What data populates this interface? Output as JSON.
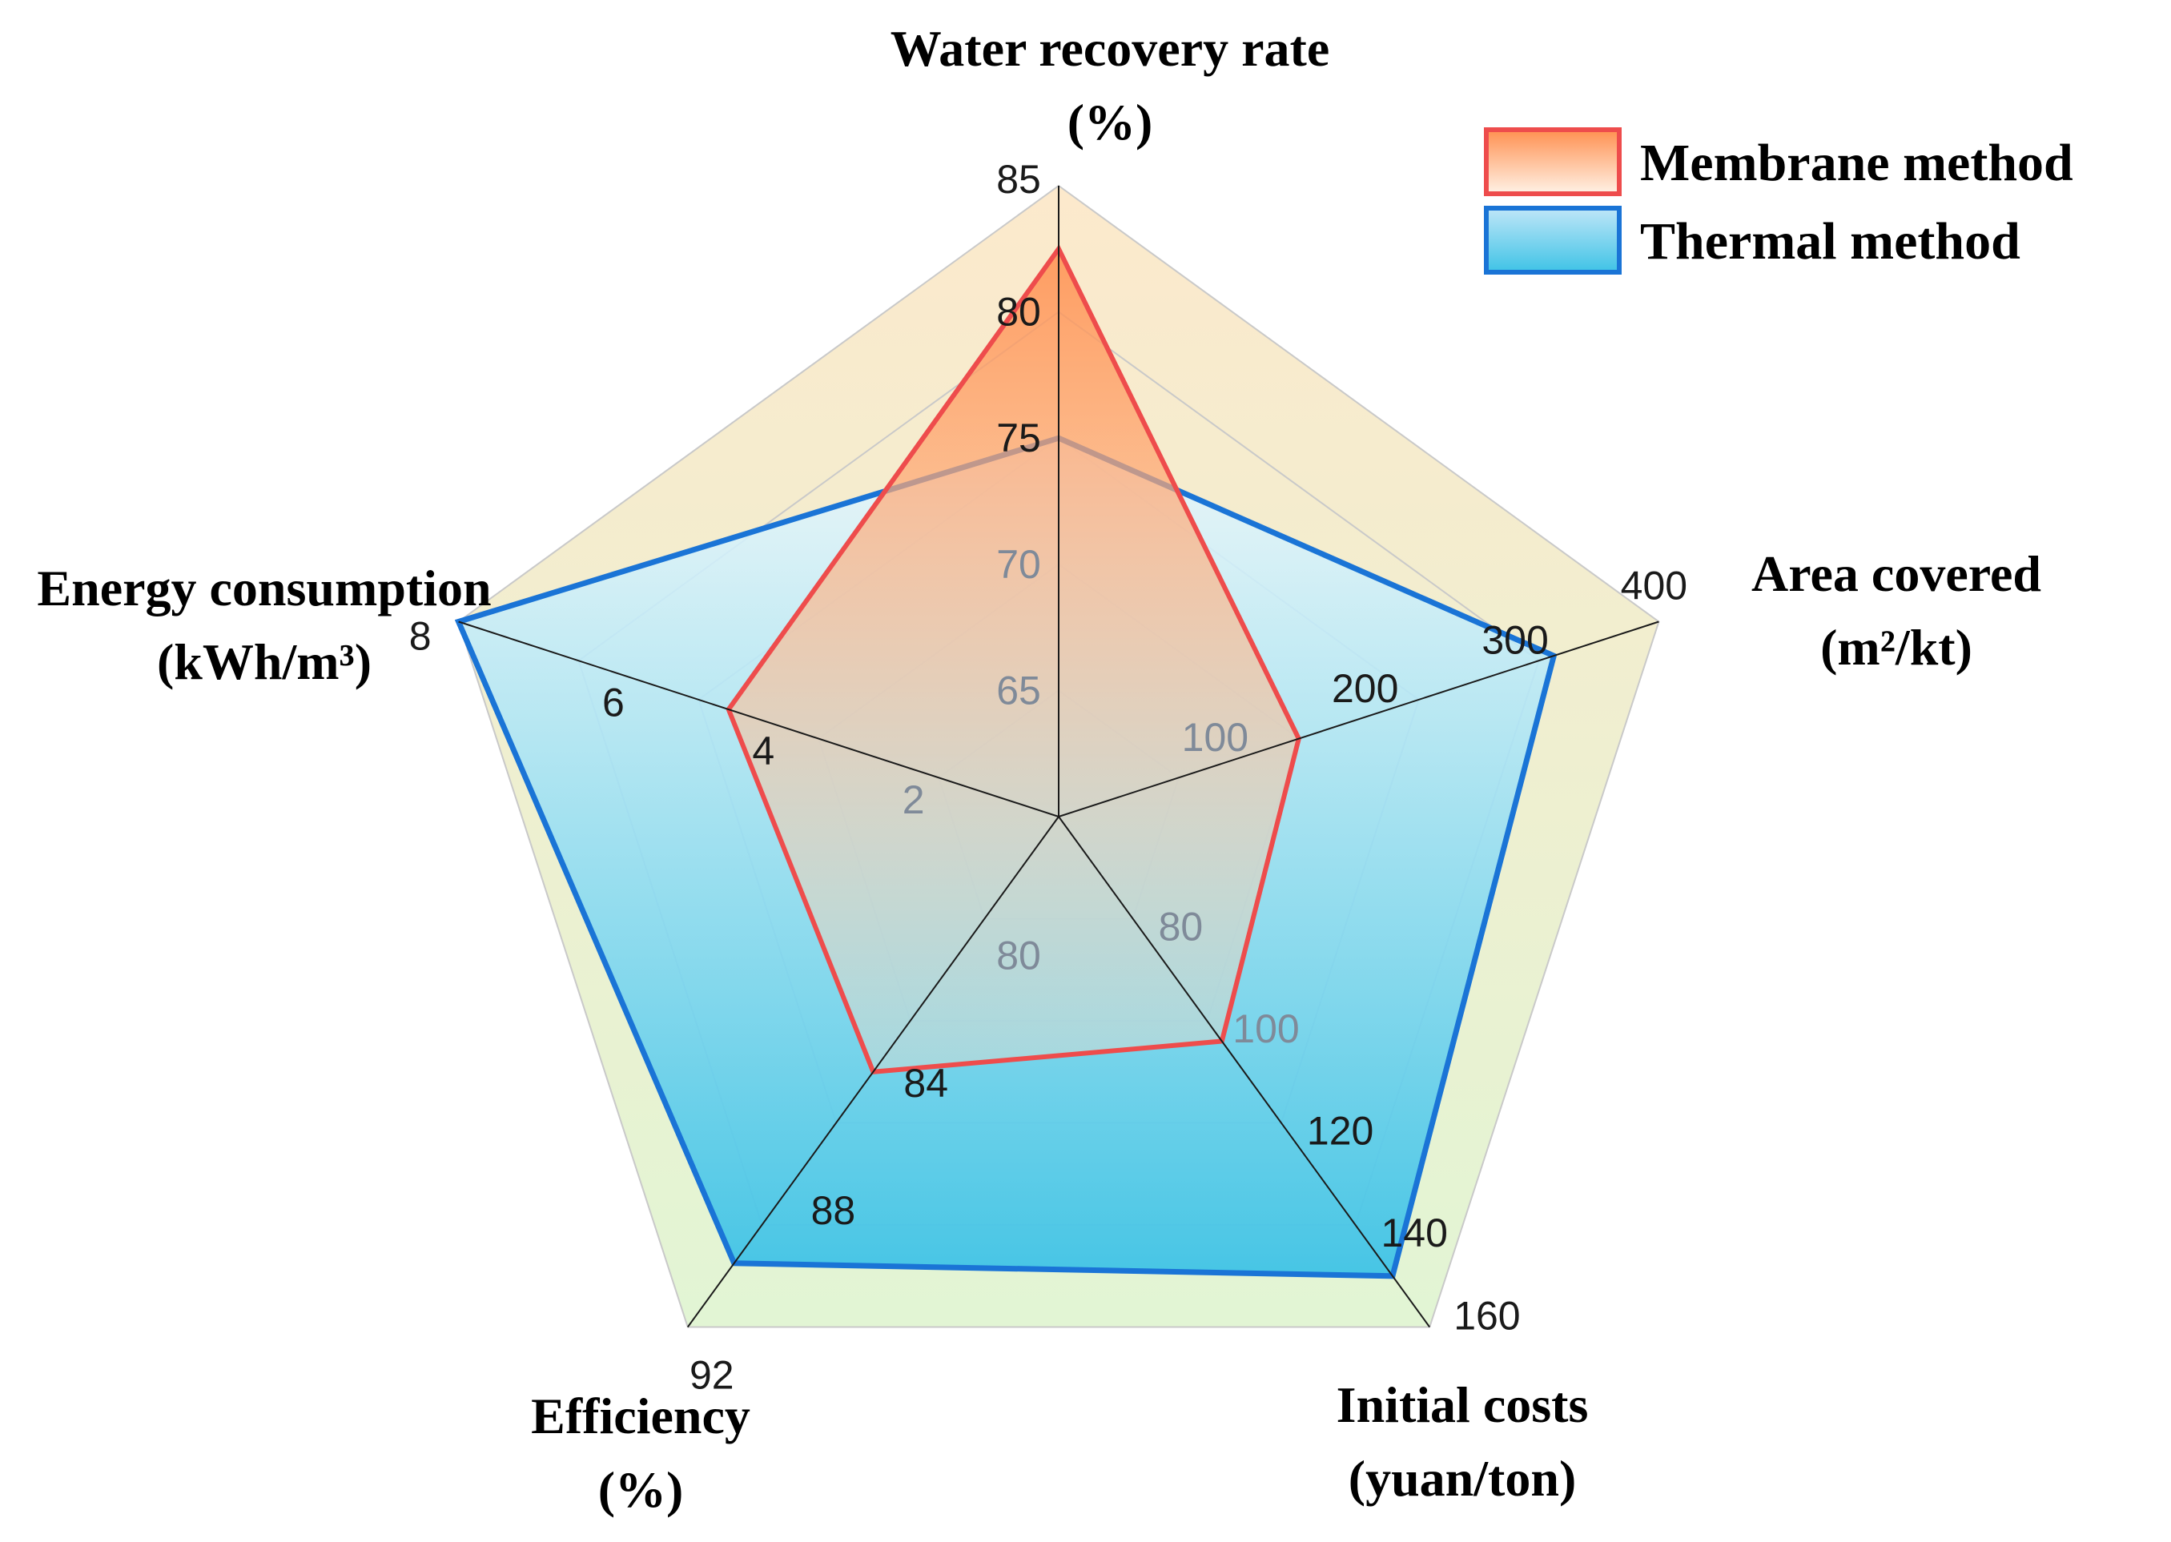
{
  "chart_data": {
    "type": "radar",
    "title": "",
    "axes": [
      {
        "key": "water_recovery",
        "title_lines": [
          "Water recovery rate",
          "(%)"
        ],
        "min": 60,
        "max": 85,
        "ticks": [
          65,
          70,
          75,
          80,
          85
        ],
        "tick_labels": [
          "65",
          "70",
          "75",
          "80",
          "85"
        ]
      },
      {
        "key": "area_covered",
        "title_lines": [
          "Area covered",
          "(m²/kt)"
        ],
        "min": 0,
        "max": 400,
        "ticks": [
          100,
          200,
          300,
          400
        ],
        "tick_labels": [
          "100",
          "200",
          "300",
          "400"
        ]
      },
      {
        "key": "initial_costs",
        "title_lines": [
          "Initial costs",
          "(yuan/ton)"
        ],
        "min": 60,
        "max": 160,
        "ticks": [
          80,
          100,
          120,
          140,
          160
        ],
        "tick_labels": [
          "80",
          "100",
          "120",
          "140",
          "160"
        ]
      },
      {
        "key": "efficiency",
        "title_lines": [
          "Efficiency",
          "(%)"
        ],
        "min": 76,
        "max": 92,
        "ticks": [
          80,
          84,
          88,
          92
        ],
        "tick_labels": [
          "80",
          "84",
          "88",
          "92"
        ]
      },
      {
        "key": "energy",
        "title_lines": [
          "Energy consumption",
          "(kWh/m³)"
        ],
        "min": 0,
        "max": 8,
        "ticks": [
          2,
          4,
          6,
          8
        ],
        "tick_labels": [
          "2",
          "4",
          "6",
          "8"
        ]
      }
    ],
    "series": [
      {
        "name": "Thermal method",
        "values": [
          75,
          330,
          150,
          90,
          8
        ],
        "stroke": "#1a74d6",
        "fill_top": "#e6f7ff",
        "fill_bottom": "#3fc3e6"
      },
      {
        "name": "Membrane method",
        "values": [
          82.5,
          160,
          104,
          84,
          4.4
        ],
        "stroke": "#ee4c4c",
        "fill_top": "#ff9050",
        "fill_bottom": "#ffe3cc"
      }
    ],
    "legend": {
      "position": "top-right",
      "items": [
        "Membrane method",
        "Thermal method"
      ]
    },
    "grid": true,
    "colors": {
      "bg_top": "#fce9cc",
      "bg_bottom": "#e2f5d4",
      "spoke": "#1a1a1a",
      "grid": "#c9c9c9"
    }
  }
}
